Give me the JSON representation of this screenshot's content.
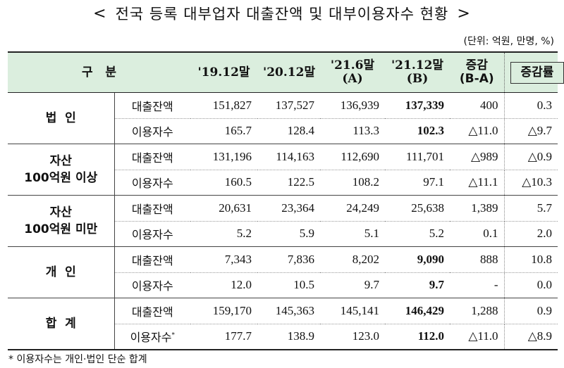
{
  "title": "전국 등록 대부업자 대출잔액 및 대부이용자수 현황",
  "title_left_arrow": "<",
  "title_right_arrow": ">",
  "unit": "(단위: 억원, 만명, %)",
  "header": {
    "category": "구   분",
    "c1": "'19.12말",
    "c2": "'20.12말",
    "c3a": "'21.6말",
    "c3b": "(A)",
    "c4a": "'21.12말",
    "c4b": "(B)",
    "c5a": "증감",
    "c5b": "(B-A)",
    "c6": "증감률"
  },
  "groups": [
    {
      "name_line1": "법  인",
      "name_line2": "",
      "rows": [
        {
          "label": "대출잔액",
          "values": [
            "151,827",
            "137,527",
            "136,939",
            "137,339",
            "400",
            "0.3"
          ],
          "bold_b": true
        },
        {
          "label": "이용자수",
          "values": [
            "165.7",
            "128.4",
            "113.3",
            "102.3",
            "△11.0",
            "△9.7"
          ],
          "bold_b": true
        }
      ]
    },
    {
      "name_line1": "자산",
      "name_line2": "100억원 이상",
      "rows": [
        {
          "label": "대출잔액",
          "values": [
            "131,196",
            "114,163",
            "112,690",
            "111,701",
            "△989",
            "△0.9"
          ],
          "bold_b": false
        },
        {
          "label": "이용자수",
          "values": [
            "160.5",
            "122.5",
            "108.2",
            "97.1",
            "△11.1",
            "△10.3"
          ],
          "bold_b": false
        }
      ]
    },
    {
      "name_line1": "자산",
      "name_line2": "100억원 미만",
      "rows": [
        {
          "label": "대출잔액",
          "values": [
            "20,631",
            "23,364",
            "24,249",
            "25,638",
            "1,389",
            "5.7"
          ],
          "bold_b": false
        },
        {
          "label": "이용자수",
          "values": [
            "5.2",
            "5.9",
            "5.1",
            "5.2",
            "0.1",
            "2.0"
          ],
          "bold_b": false
        }
      ]
    },
    {
      "name_line1": "개  인",
      "name_line2": "",
      "rows": [
        {
          "label": "대출잔액",
          "values": [
            "7,343",
            "7,836",
            "8,202",
            "9,090",
            "888",
            "10.8"
          ],
          "bold_b": true
        },
        {
          "label": "이용자수",
          "values": [
            "12.0",
            "10.5",
            "9.7",
            "9.7",
            "-",
            "0.0"
          ],
          "bold_b": true
        }
      ]
    },
    {
      "name_line1": "합  계",
      "name_line2": "",
      "rows": [
        {
          "label": "대출잔액",
          "values": [
            "159,170",
            "145,363",
            "145,141",
            "146,429",
            "1,288",
            "0.9"
          ],
          "bold_b": true
        },
        {
          "label": "이용자수",
          "label_sup": "*",
          "values": [
            "177.7",
            "138.9",
            "123.0",
            "112.0",
            "△11.0",
            "△8.9"
          ],
          "bold_b": true
        }
      ]
    }
  ],
  "footnote": "* 이용자수는 개인·법인 단순 합계"
}
